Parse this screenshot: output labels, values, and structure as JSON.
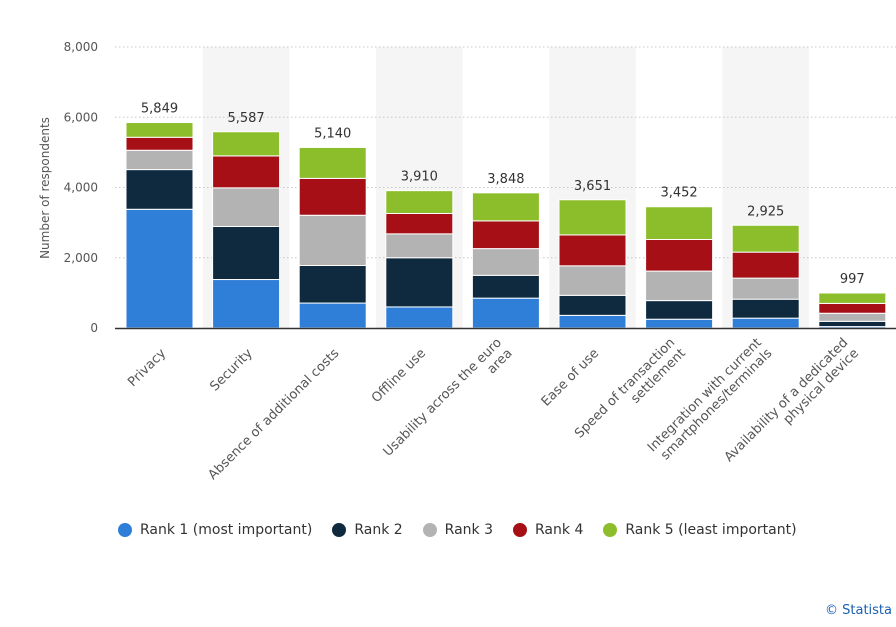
{
  "chart_data": {
    "type": "bar",
    "stacked": true,
    "ylabel": "Number of respondents",
    "ylim": [
      0,
      8000
    ],
    "yticks": [
      "0",
      "2,000",
      "4,000",
      "6,000",
      "8,000"
    ],
    "categories": [
      "Privacy",
      "Security",
      "Absence of additional costs",
      "Offline use",
      "Usability across the euro area",
      "Ease of use",
      "Speed of transaction settlement",
      "Integration with current smartphones/terminals",
      "Availability of a dedicated physical device"
    ],
    "category_lines": [
      [
        "Privacy"
      ],
      [
        "Security"
      ],
      [
        "Absence of additional costs"
      ],
      [
        "Offline use"
      ],
      [
        "Usability across the euro",
        "area"
      ],
      [
        "Ease of use"
      ],
      [
        "Speed of transaction",
        "settlement"
      ],
      [
        "Integration with current",
        "smartphones/terminals"
      ],
      [
        "Availability of a dedicated",
        "physical device"
      ]
    ],
    "totals": [
      "5,849",
      "5,587",
      "5,140",
      "3,910",
      "3,848",
      "3,651",
      "3,452",
      "2,925",
      "997"
    ],
    "series": [
      {
        "name": "Rank 1 (most important)",
        "color": "#2f7ed8",
        "values": [
          3380,
          1380,
          710,
          600,
          850,
          360,
          250,
          280,
          40
        ]
      },
      {
        "name": "Rank 2",
        "color": "#0f2a3f",
        "values": [
          1130,
          1510,
          1070,
          1400,
          650,
          570,
          530,
          540,
          150
        ]
      },
      {
        "name": "Rank 3",
        "color": "#b3b3b3",
        "values": [
          550,
          1100,
          1430,
          680,
          760,
          840,
          840,
          600,
          230
        ]
      },
      {
        "name": "Rank 4",
        "color": "#a50f15",
        "values": [
          370,
          910,
          1050,
          580,
          790,
          880,
          900,
          740,
          280
        ]
      },
      {
        "name": "Rank 5 (least important)",
        "color": "#8cbd2a",
        "values": [
          419,
          687,
          880,
          650,
          798,
          1001,
          932,
          765,
          297
        ]
      }
    ],
    "grid": true,
    "legend_position": "bottom"
  },
  "credit": "© Statista"
}
